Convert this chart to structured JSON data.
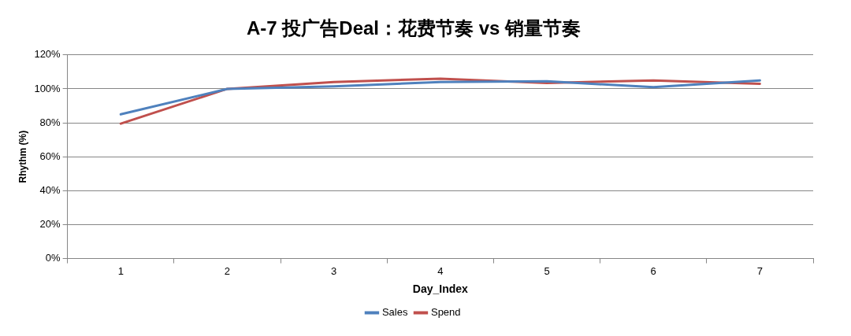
{
  "chart_data": {
    "type": "line",
    "title": "A-7 投广告Deal：花费节奏 vs 销量节奏",
    "xlabel": "Day_Index",
    "ylabel": "Rhythm (%)",
    "categories": [
      "1",
      "2",
      "3",
      "4",
      "5",
      "6",
      "7"
    ],
    "series": [
      {
        "name": "Sales",
        "color": "#4f81bd",
        "values": [
          85,
          100,
          101.5,
          104,
          104.5,
          101,
          105
        ]
      },
      {
        "name": "Spend",
        "color": "#c0504d",
        "values": [
          79.5,
          100,
          104,
          106,
          103.5,
          105,
          103
        ]
      }
    ],
    "ylim": [
      0,
      120
    ],
    "yticks": [
      {
        "value": 0,
        "label": "0%"
      },
      {
        "value": 20,
        "label": "20%"
      },
      {
        "value": 40,
        "label": "40%"
      },
      {
        "value": 60,
        "label": "60%"
      },
      {
        "value": 80,
        "label": "80%"
      },
      {
        "value": 100,
        "label": "100%"
      },
      {
        "value": 120,
        "label": "120%"
      }
    ],
    "grid": "y",
    "legend": "bottom",
    "marker": "none",
    "line_style": "solid"
  }
}
